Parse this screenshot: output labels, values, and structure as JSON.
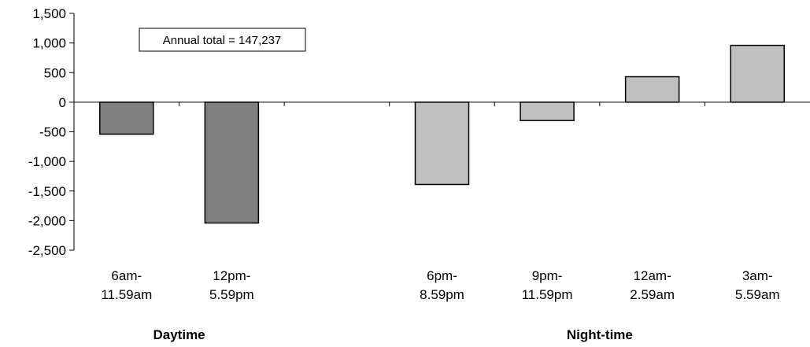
{
  "chart_data": {
    "type": "bar",
    "categories": [
      [
        "6am-",
        "11.59am"
      ],
      [
        "12pm-",
        "5.59pm"
      ],
      [
        "6pm-",
        "8.59pm"
      ],
      [
        "9pm-",
        "11.59pm"
      ],
      [
        "12am-",
        "2.59am"
      ],
      [
        "3am-",
        "5.59am"
      ]
    ],
    "groups": [
      {
        "label": "Daytime",
        "color": "#808080",
        "members": [
          0,
          1
        ]
      },
      {
        "label": "Night-time",
        "color": "#c0c0c0",
        "members": [
          2,
          3,
          4,
          5
        ]
      }
    ],
    "values": [
      -540,
      -2040,
      -1390,
      -310,
      430,
      960
    ],
    "ylim": [
      -2500,
      1500
    ],
    "yticks": [
      1500,
      1000,
      500,
      0,
      -500,
      -1000,
      -1500,
      -2000,
      -2500
    ],
    "ytick_labels": [
      "1,500",
      "1,000",
      "500",
      "0",
      "-500",
      "-1,000",
      "-1,500",
      "-2,000",
      "-2,500"
    ],
    "annotation": "Annual total = 147,237",
    "grid": false,
    "xlabel": "",
    "ylabel": "",
    "title": ""
  }
}
